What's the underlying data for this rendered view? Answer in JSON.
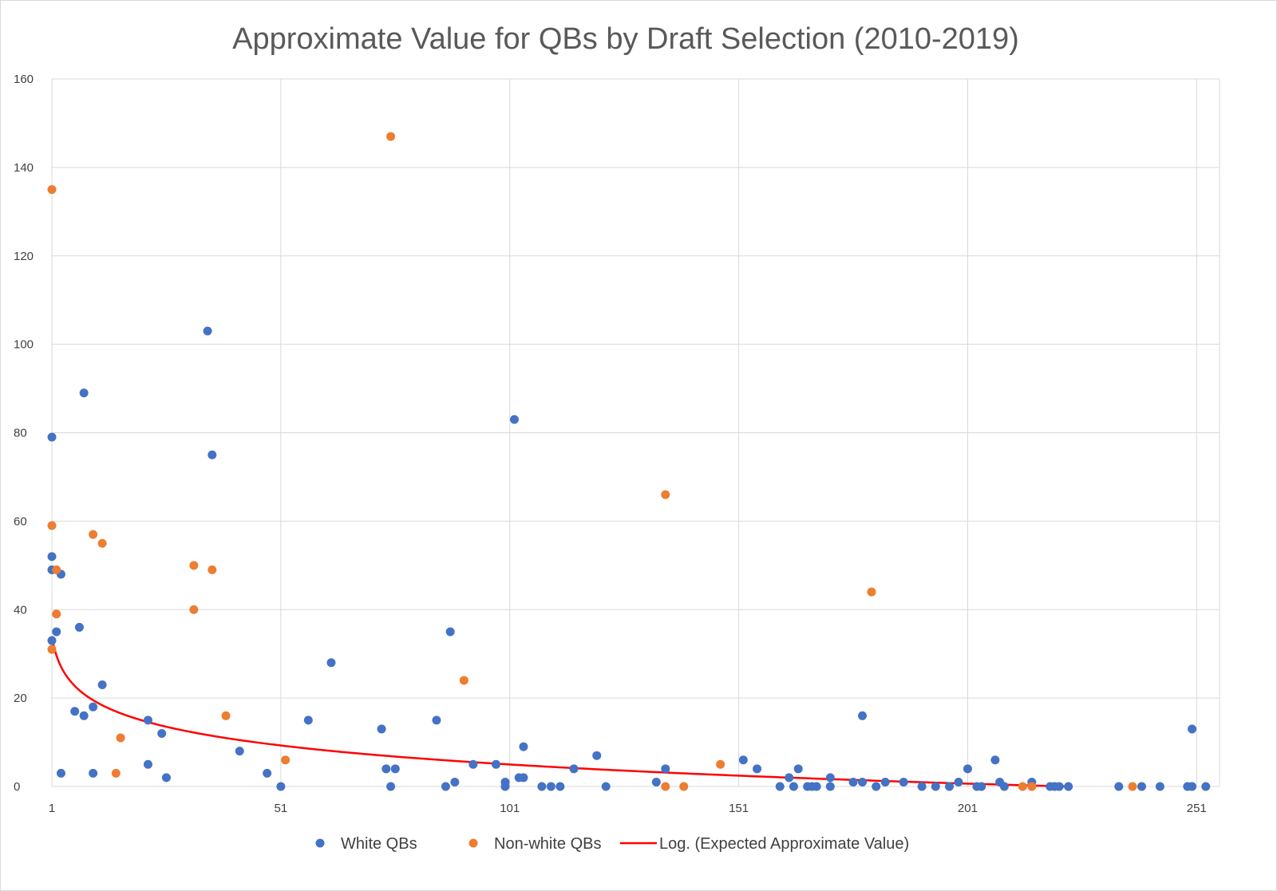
{
  "chart_data": {
    "type": "scatter",
    "title": "Approximate Value for QBs by Draft Selection (2010-2019)",
    "xlabel": "",
    "ylabel": "",
    "xlim": [
      1,
      256
    ],
    "ylim": [
      0,
      160
    ],
    "x_ticks": [
      1,
      51,
      101,
      151,
      201,
      251
    ],
    "y_ticks": [
      0,
      20,
      40,
      60,
      80,
      100,
      120,
      140,
      160
    ],
    "grid": true,
    "legend_position": "bottom",
    "series": [
      {
        "name": "White QBs",
        "color": "#4472C4",
        "points": [
          [
            1,
            79
          ],
          [
            1,
            52
          ],
          [
            1,
            49
          ],
          [
            1,
            33
          ],
          [
            2,
            35
          ],
          [
            3,
            48
          ],
          [
            3,
            3
          ],
          [
            6,
            17
          ],
          [
            7,
            36
          ],
          [
            8,
            16
          ],
          [
            8,
            89
          ],
          [
            10,
            18
          ],
          [
            10,
            3
          ],
          [
            12,
            23
          ],
          [
            22,
            15
          ],
          [
            22,
            5
          ],
          [
            25,
            12
          ],
          [
            26,
            2
          ],
          [
            35,
            103
          ],
          [
            36,
            75
          ],
          [
            42,
            8
          ],
          [
            48,
            3
          ],
          [
            51,
            0
          ],
          [
            57,
            15
          ],
          [
            62,
            28
          ],
          [
            73,
            13
          ],
          [
            74,
            4
          ],
          [
            75,
            0
          ],
          [
            76,
            4
          ],
          [
            85,
            15
          ],
          [
            87,
            0
          ],
          [
            88,
            35
          ],
          [
            89,
            1
          ],
          [
            93,
            5
          ],
          [
            98,
            5
          ],
          [
            100,
            1
          ],
          [
            100,
            0
          ],
          [
            102,
            83
          ],
          [
            103,
            2
          ],
          [
            104,
            2
          ],
          [
            104,
            9
          ],
          [
            108,
            0
          ],
          [
            110,
            0
          ],
          [
            112,
            0
          ],
          [
            115,
            4
          ],
          [
            120,
            7
          ],
          [
            122,
            0
          ],
          [
            133,
            1
          ],
          [
            135,
            4
          ],
          [
            152,
            6
          ],
          [
            155,
            4
          ],
          [
            160,
            0
          ],
          [
            162,
            2
          ],
          [
            163,
            0
          ],
          [
            164,
            4
          ],
          [
            166,
            0
          ],
          [
            167,
            0
          ],
          [
            168,
            0
          ],
          [
            171,
            2
          ],
          [
            171,
            0
          ],
          [
            176,
            1
          ],
          [
            178,
            1
          ],
          [
            178,
            16
          ],
          [
            181,
            0
          ],
          [
            183,
            1
          ],
          [
            187,
            1
          ],
          [
            191,
            0
          ],
          [
            194,
            0
          ],
          [
            197,
            0
          ],
          [
            199,
            1
          ],
          [
            201,
            4
          ],
          [
            203,
            0
          ],
          [
            204,
            0
          ],
          [
            207,
            6
          ],
          [
            208,
            1
          ],
          [
            209,
            0
          ],
          [
            215,
            1
          ],
          [
            219,
            0
          ],
          [
            220,
            0
          ],
          [
            221,
            0
          ],
          [
            223,
            0
          ],
          [
            234,
            0
          ],
          [
            239,
            0
          ],
          [
            243,
            0
          ],
          [
            249,
            0
          ],
          [
            250,
            0
          ],
          [
            250,
            13
          ],
          [
            253,
            0
          ]
        ]
      },
      {
        "name": "Non-white QBs",
        "color": "#ED7D31",
        "points": [
          [
            1,
            135
          ],
          [
            1,
            59
          ],
          [
            1,
            31
          ],
          [
            2,
            49
          ],
          [
            2,
            39
          ],
          [
            10,
            57
          ],
          [
            12,
            55
          ],
          [
            15,
            3
          ],
          [
            16,
            11
          ],
          [
            32,
            50
          ],
          [
            32,
            40
          ],
          [
            36,
            49
          ],
          [
            39,
            16
          ],
          [
            52,
            6
          ],
          [
            75,
            147
          ],
          [
            91,
            24
          ],
          [
            135,
            66
          ],
          [
            135,
            0
          ],
          [
            139,
            0
          ],
          [
            147,
            5
          ],
          [
            180,
            44
          ],
          [
            213,
            0
          ],
          [
            215,
            0
          ],
          [
            237,
            0
          ]
        ]
      }
    ],
    "trendline": {
      "name": "Log. (Expected Approximate Value)",
      "color": "#FF0000",
      "type": "logarithmic",
      "x_range": [
        1,
        223
      ],
      "start_value": 34,
      "end_value": 0
    }
  }
}
